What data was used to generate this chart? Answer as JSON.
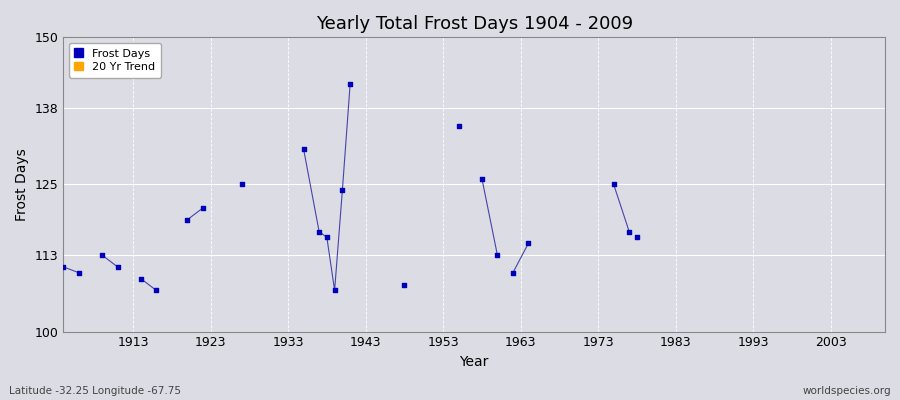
{
  "title": "Yearly Total Frost Days 1904 - 2009",
  "xlabel": "Year",
  "ylabel": "Frost Days",
  "subtitle": "Latitude -32.25 Longitude -67.75",
  "watermark": "worldspecies.org",
  "ylim": [
    100,
    150
  ],
  "xlim": [
    1904,
    2010
  ],
  "yticks": [
    100,
    113,
    125,
    138,
    150
  ],
  "xticks": [
    1913,
    1923,
    1933,
    1943,
    1953,
    1963,
    1973,
    1983,
    1993,
    2003
  ],
  "data_segments": [
    {
      "years": [
        1904,
        1906
      ],
      "values": [
        111,
        110
      ]
    },
    {
      "years": [
        1909,
        1911
      ],
      "values": [
        113,
        111
      ]
    },
    {
      "years": [
        1914,
        1916
      ],
      "values": [
        109,
        107
      ]
    },
    {
      "years": [
        1920,
        1922
      ],
      "values": [
        119,
        121
      ]
    },
    {
      "years": [
        1927
      ],
      "values": [
        125
      ]
    },
    {
      "years": [
        1935,
        1937,
        1938,
        1939,
        1940,
        1941
      ],
      "values": [
        131,
        117,
        116,
        107,
        124,
        142
      ]
    },
    {
      "years": [
        1948
      ],
      "values": [
        108
      ]
    },
    {
      "years": [
        1955
      ],
      "values": [
        135
      ]
    },
    {
      "years": [
        1958,
        1960
      ],
      "values": [
        126,
        113
      ]
    },
    {
      "years": [
        1962,
        1964
      ],
      "values": [
        110,
        115
      ]
    },
    {
      "years": [
        1975,
        1977
      ],
      "values": [
        125,
        117
      ]
    },
    {
      "years": [
        1978
      ],
      "values": [
        116
      ]
    }
  ],
  "point_color": "#0000bb",
  "line_color": "#4444aa",
  "bg_color": "#dcdce4",
  "plot_bg_color": "#dcdce4",
  "grid_color": "#ffffff",
  "legend_frost_color": "#0000bb",
  "legend_trend_color": "#ffa500",
  "title_fontsize": 13,
  "axis_fontsize": 9,
  "ylabel_fontsize": 10
}
